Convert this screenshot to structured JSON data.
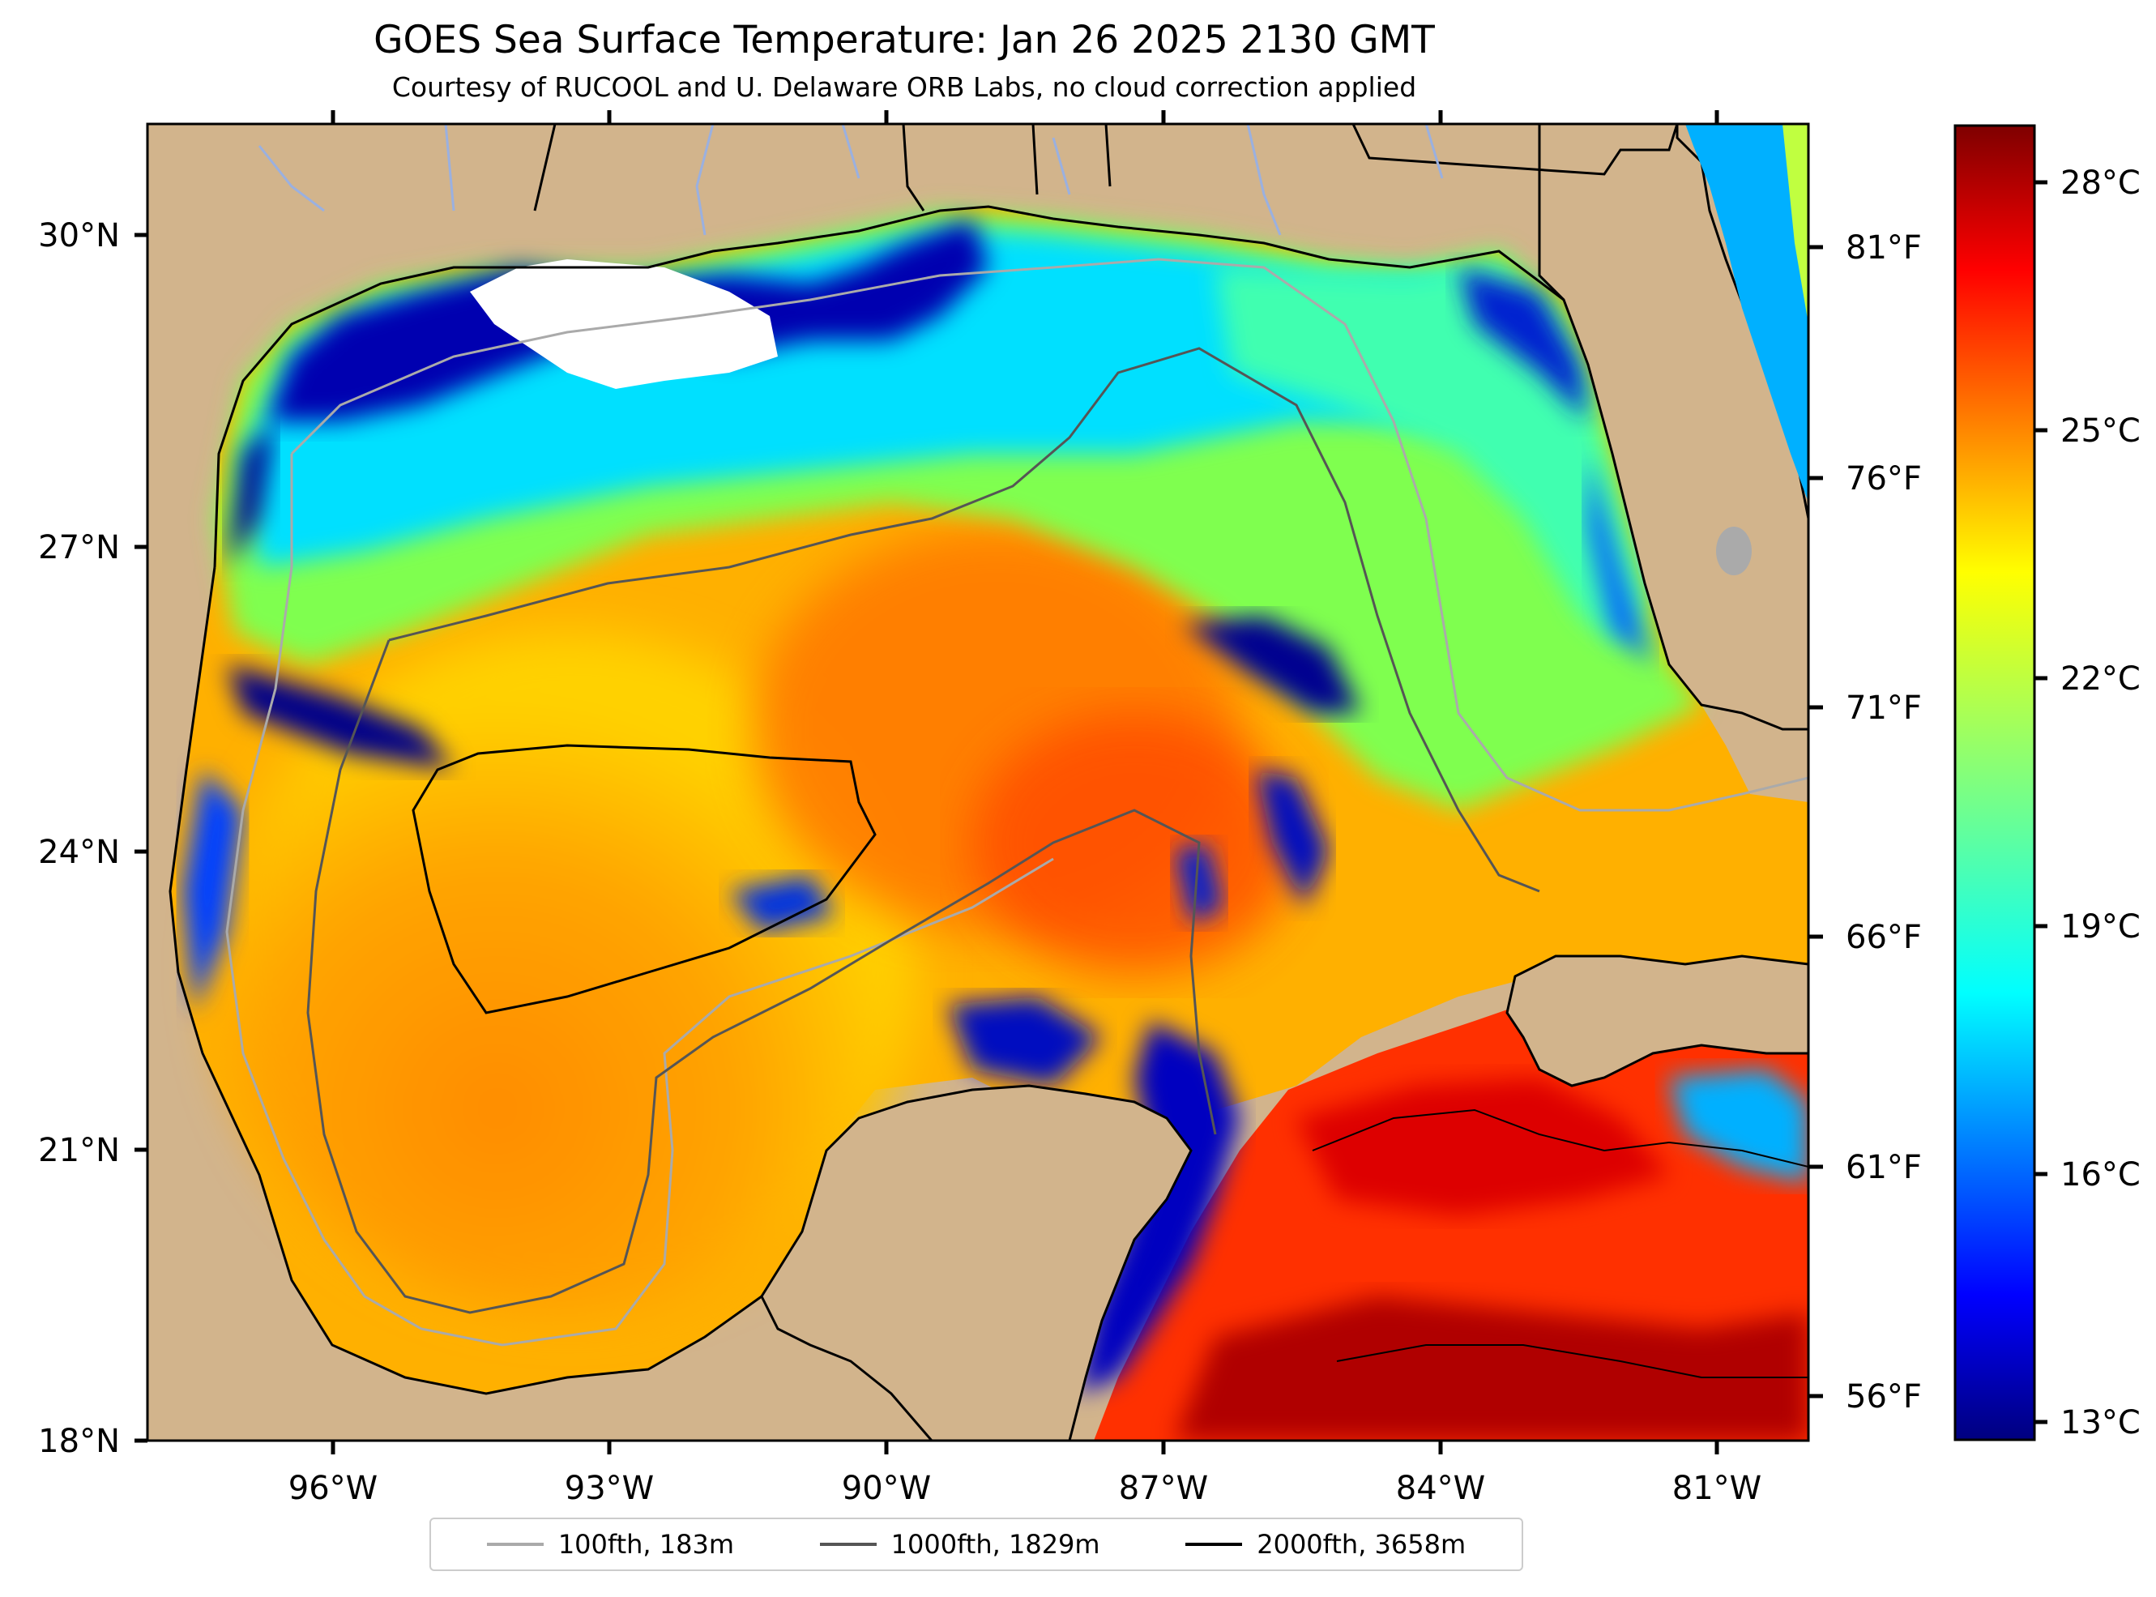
{
  "title": "GOES Sea Surface Temperature: Jan 26 2025 2130 GMT",
  "subtitle": "Courtesy of RUCOOL and U. Delaware ORB Labs, no cloud correction applied",
  "map": {
    "lon_range": [
      -98,
      -80
    ],
    "lat_range": [
      18,
      31
    ],
    "lon_ticks": [
      "96°W",
      "93°W",
      "90°W",
      "87°W",
      "84°W",
      "81°W"
    ],
    "lat_ticks": [
      "30°N",
      "27°N",
      "24°N",
      "21°N",
      "18°N"
    ],
    "fahrenheit_ticks": [
      "81°F",
      "76°F",
      "71°F",
      "66°F",
      "61°F",
      "56°F"
    ],
    "land_color": "#d2b48c",
    "cloud_color": "#ffffff"
  },
  "colorbar": {
    "range_c": [
      12.7,
      28.6
    ],
    "ticks": [
      "28°C",
      "25°C",
      "22°C",
      "19°C",
      "16°C",
      "13°C"
    ],
    "colormap": "jet"
  },
  "legend": {
    "items": [
      {
        "label": "100fth, 183m",
        "color": "#aaaaaa"
      },
      {
        "label": "1000fth, 1829m",
        "color": "#555555"
      },
      {
        "label": "2000fth, 3658m",
        "color": "#000000"
      }
    ]
  }
}
